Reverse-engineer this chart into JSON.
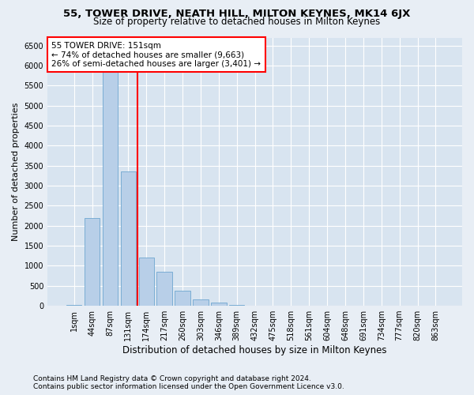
{
  "title": "55, TOWER DRIVE, NEATH HILL, MILTON KEYNES, MK14 6JX",
  "subtitle": "Size of property relative to detached houses in Milton Keynes",
  "xlabel": "Distribution of detached houses by size in Milton Keynes",
  "ylabel": "Number of detached properties",
  "footer_line1": "Contains HM Land Registry data © Crown copyright and database right 2024.",
  "footer_line2": "Contains public sector information licensed under the Open Government Licence v3.0.",
  "bar_labels": [
    "1sqm",
    "44sqm",
    "87sqm",
    "131sqm",
    "174sqm",
    "217sqm",
    "260sqm",
    "303sqm",
    "346sqm",
    "389sqm",
    "432sqm",
    "475sqm",
    "518sqm",
    "561sqm",
    "604sqm",
    "648sqm",
    "691sqm",
    "734sqm",
    "777sqm",
    "820sqm",
    "863sqm"
  ],
  "bar_values": [
    20,
    2200,
    6100,
    3350,
    1200,
    850,
    370,
    150,
    80,
    30,
    10,
    5,
    0,
    0,
    0,
    0,
    0,
    0,
    0,
    0,
    0
  ],
  "bar_color": "#b8cfe8",
  "bar_edgecolor": "#6ea6d0",
  "vline_position": 3.5,
  "vline_color": "red",
  "annotation_title": "55 TOWER DRIVE: 151sqm",
  "annotation_line1": "← 74% of detached houses are smaller (9,663)",
  "annotation_line2": "26% of semi-detached houses are larger (3,401) →",
  "ylim": [
    0,
    6700
  ],
  "yticks": [
    0,
    500,
    1000,
    1500,
    2000,
    2500,
    3000,
    3500,
    4000,
    4500,
    5000,
    5500,
    6000,
    6500
  ],
  "background_color": "#e8eef5",
  "plot_background_color": "#d8e4f0",
  "title_fontsize": 9.5,
  "subtitle_fontsize": 8.5,
  "ylabel_fontsize": 8,
  "xlabel_fontsize": 8.5,
  "tick_fontsize": 7,
  "annotation_fontsize": 7.5,
  "footer_fontsize": 6.5
}
